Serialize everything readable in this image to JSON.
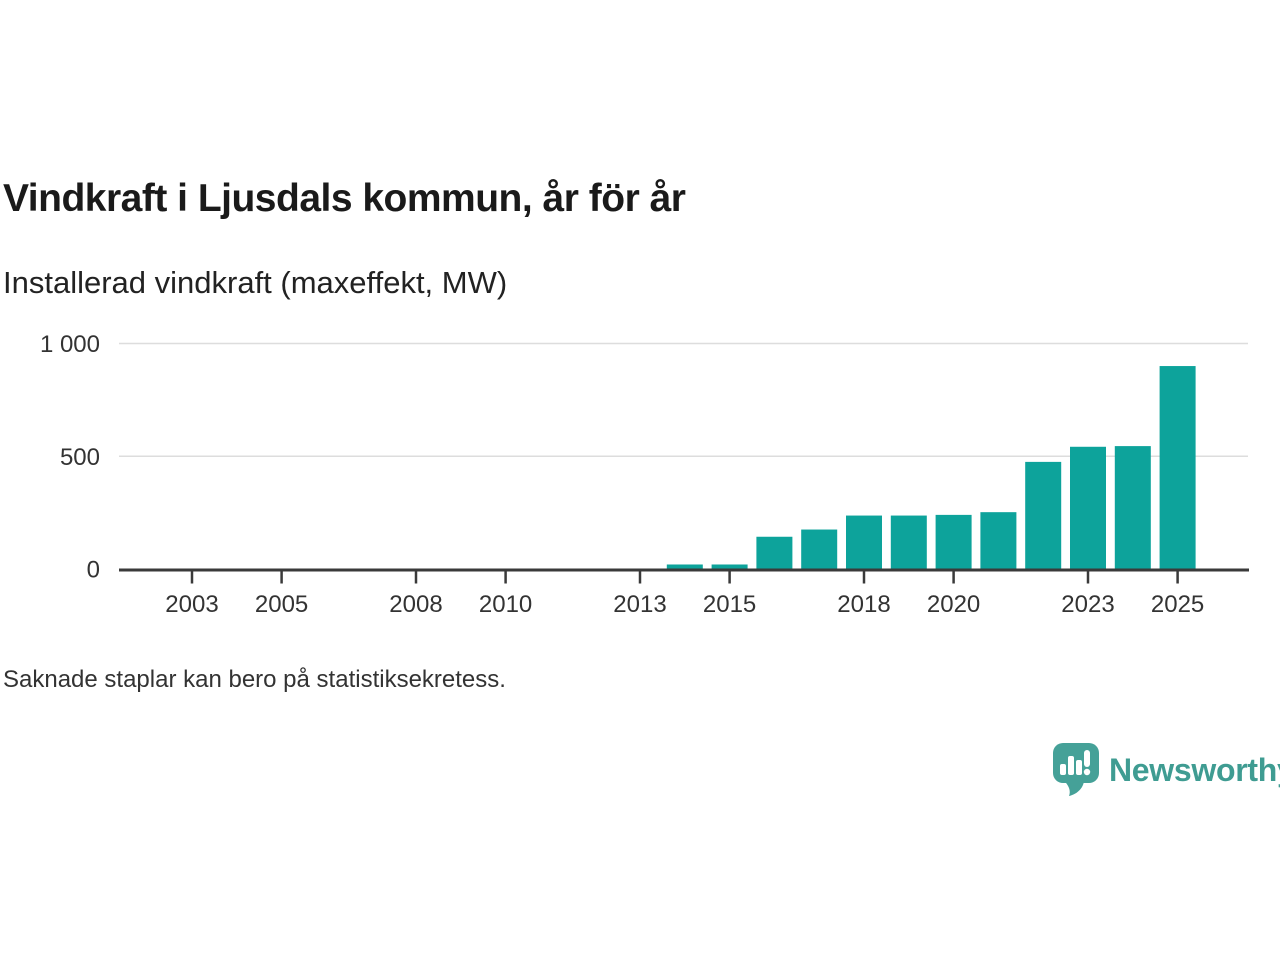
{
  "chart_data": {
    "type": "bar",
    "title": "Vindkraft i Ljusdals kommun, år för år",
    "subtitle": "Installerad vindkraft (maxeffekt, MW)",
    "note": "Saknade staplar kan bero på statistiksekretess.",
    "xlabel": "",
    "ylabel": "",
    "unit": "MW",
    "x": [
      2014,
      2015,
      2016,
      2017,
      2018,
      2019,
      2020,
      2021,
      2022,
      2023,
      2024,
      2025
    ],
    "values": [
      20,
      20,
      143,
      175,
      237,
      237,
      240,
      252,
      475,
      542,
      545,
      900
    ],
    "x_tick_labels": [
      2003,
      2005,
      2008,
      2010,
      2013,
      2015,
      2018,
      2020,
      2023,
      2025
    ],
    "y_ticks": [
      {
        "value": 0,
        "label": "0"
      },
      {
        "value": 500,
        "label": "500"
      },
      {
        "value": 1000,
        "label": "1 000"
      }
    ],
    "ylim": [
      0,
      1000
    ],
    "x_range_years": [
      2001.5,
      2026.5
    ],
    "grid": "horizontal",
    "legend": "none"
  },
  "branding": {
    "wordmark": "Newsworthy"
  },
  "colors": {
    "bar": "#0da39b",
    "brand": "#45a198",
    "brand_text": "#3f9c92",
    "axis_line": "#3a3a3a",
    "gridline": "#dddddd",
    "tick_text": "#333333"
  }
}
